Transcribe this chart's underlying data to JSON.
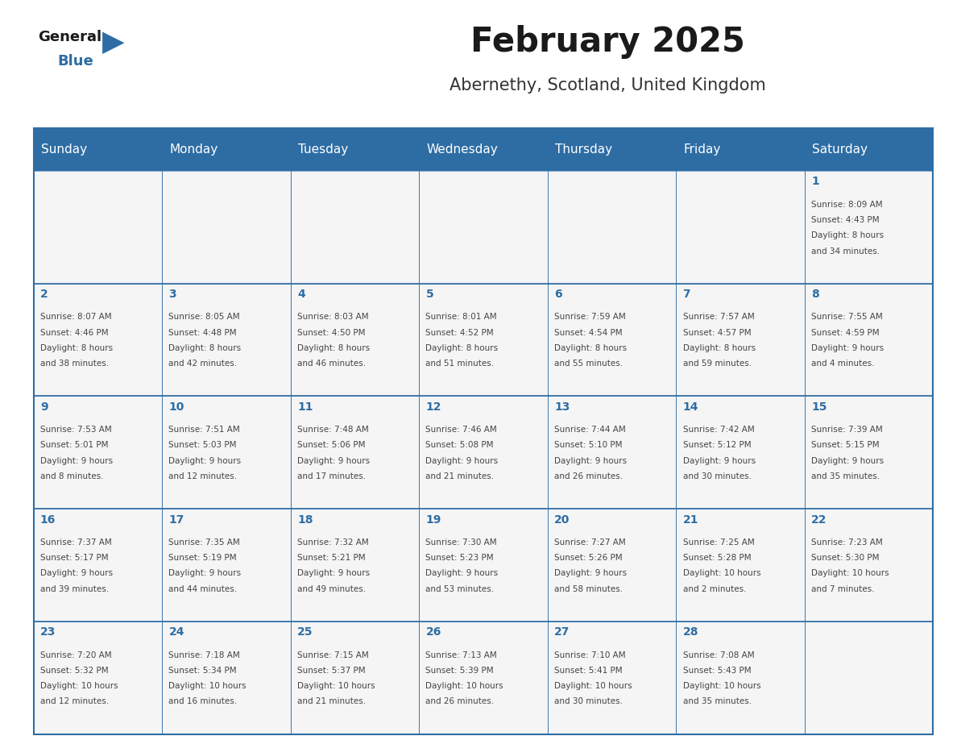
{
  "title": "February 2025",
  "subtitle": "Abernethy, Scotland, United Kingdom",
  "days_of_week": [
    "Sunday",
    "Monday",
    "Tuesday",
    "Wednesday",
    "Thursday",
    "Friday",
    "Saturday"
  ],
  "header_bg": "#2E6DA4",
  "header_text": "#FFFFFF",
  "cell_bg": "#F5F5F5",
  "day_number_color": "#2E6DA4",
  "text_color": "#444444",
  "border_color": "#2E6DA4",
  "calendar_data": [
    [
      {
        "day": null,
        "sunrise": null,
        "sunset": null,
        "daylight": null
      },
      {
        "day": null,
        "sunrise": null,
        "sunset": null,
        "daylight": null
      },
      {
        "day": null,
        "sunrise": null,
        "sunset": null,
        "daylight": null
      },
      {
        "day": null,
        "sunrise": null,
        "sunset": null,
        "daylight": null
      },
      {
        "day": null,
        "sunrise": null,
        "sunset": null,
        "daylight": null
      },
      {
        "day": null,
        "sunrise": null,
        "sunset": null,
        "daylight": null
      },
      {
        "day": 1,
        "sunrise": "8:09 AM",
        "sunset": "4:43 PM",
        "daylight": "8 hours\nand 34 minutes."
      }
    ],
    [
      {
        "day": 2,
        "sunrise": "8:07 AM",
        "sunset": "4:46 PM",
        "daylight": "8 hours\nand 38 minutes."
      },
      {
        "day": 3,
        "sunrise": "8:05 AM",
        "sunset": "4:48 PM",
        "daylight": "8 hours\nand 42 minutes."
      },
      {
        "day": 4,
        "sunrise": "8:03 AM",
        "sunset": "4:50 PM",
        "daylight": "8 hours\nand 46 minutes."
      },
      {
        "day": 5,
        "sunrise": "8:01 AM",
        "sunset": "4:52 PM",
        "daylight": "8 hours\nand 51 minutes."
      },
      {
        "day": 6,
        "sunrise": "7:59 AM",
        "sunset": "4:54 PM",
        "daylight": "8 hours\nand 55 minutes."
      },
      {
        "day": 7,
        "sunrise": "7:57 AM",
        "sunset": "4:57 PM",
        "daylight": "8 hours\nand 59 minutes."
      },
      {
        "day": 8,
        "sunrise": "7:55 AM",
        "sunset": "4:59 PM",
        "daylight": "9 hours\nand 4 minutes."
      }
    ],
    [
      {
        "day": 9,
        "sunrise": "7:53 AM",
        "sunset": "5:01 PM",
        "daylight": "9 hours\nand 8 minutes."
      },
      {
        "day": 10,
        "sunrise": "7:51 AM",
        "sunset": "5:03 PM",
        "daylight": "9 hours\nand 12 minutes."
      },
      {
        "day": 11,
        "sunrise": "7:48 AM",
        "sunset": "5:06 PM",
        "daylight": "9 hours\nand 17 minutes."
      },
      {
        "day": 12,
        "sunrise": "7:46 AM",
        "sunset": "5:08 PM",
        "daylight": "9 hours\nand 21 minutes."
      },
      {
        "day": 13,
        "sunrise": "7:44 AM",
        "sunset": "5:10 PM",
        "daylight": "9 hours\nand 26 minutes."
      },
      {
        "day": 14,
        "sunrise": "7:42 AM",
        "sunset": "5:12 PM",
        "daylight": "9 hours\nand 30 minutes."
      },
      {
        "day": 15,
        "sunrise": "7:39 AM",
        "sunset": "5:15 PM",
        "daylight": "9 hours\nand 35 minutes."
      }
    ],
    [
      {
        "day": 16,
        "sunrise": "7:37 AM",
        "sunset": "5:17 PM",
        "daylight": "9 hours\nand 39 minutes."
      },
      {
        "day": 17,
        "sunrise": "7:35 AM",
        "sunset": "5:19 PM",
        "daylight": "9 hours\nand 44 minutes."
      },
      {
        "day": 18,
        "sunrise": "7:32 AM",
        "sunset": "5:21 PM",
        "daylight": "9 hours\nand 49 minutes."
      },
      {
        "day": 19,
        "sunrise": "7:30 AM",
        "sunset": "5:23 PM",
        "daylight": "9 hours\nand 53 minutes."
      },
      {
        "day": 20,
        "sunrise": "7:27 AM",
        "sunset": "5:26 PM",
        "daylight": "9 hours\nand 58 minutes."
      },
      {
        "day": 21,
        "sunrise": "7:25 AM",
        "sunset": "5:28 PM",
        "daylight": "10 hours\nand 2 minutes."
      },
      {
        "day": 22,
        "sunrise": "7:23 AM",
        "sunset": "5:30 PM",
        "daylight": "10 hours\nand 7 minutes."
      }
    ],
    [
      {
        "day": 23,
        "sunrise": "7:20 AM",
        "sunset": "5:32 PM",
        "daylight": "10 hours\nand 12 minutes."
      },
      {
        "day": 24,
        "sunrise": "7:18 AM",
        "sunset": "5:34 PM",
        "daylight": "10 hours\nand 16 minutes."
      },
      {
        "day": 25,
        "sunrise": "7:15 AM",
        "sunset": "5:37 PM",
        "daylight": "10 hours\nand 21 minutes."
      },
      {
        "day": 26,
        "sunrise": "7:13 AM",
        "sunset": "5:39 PM",
        "daylight": "10 hours\nand 26 minutes."
      },
      {
        "day": 27,
        "sunrise": "7:10 AM",
        "sunset": "5:41 PM",
        "daylight": "10 hours\nand 30 minutes."
      },
      {
        "day": 28,
        "sunrise": "7:08 AM",
        "sunset": "5:43 PM",
        "daylight": "10 hours\nand 35 minutes."
      },
      {
        "day": null,
        "sunrise": null,
        "sunset": null,
        "daylight": null
      }
    ]
  ]
}
